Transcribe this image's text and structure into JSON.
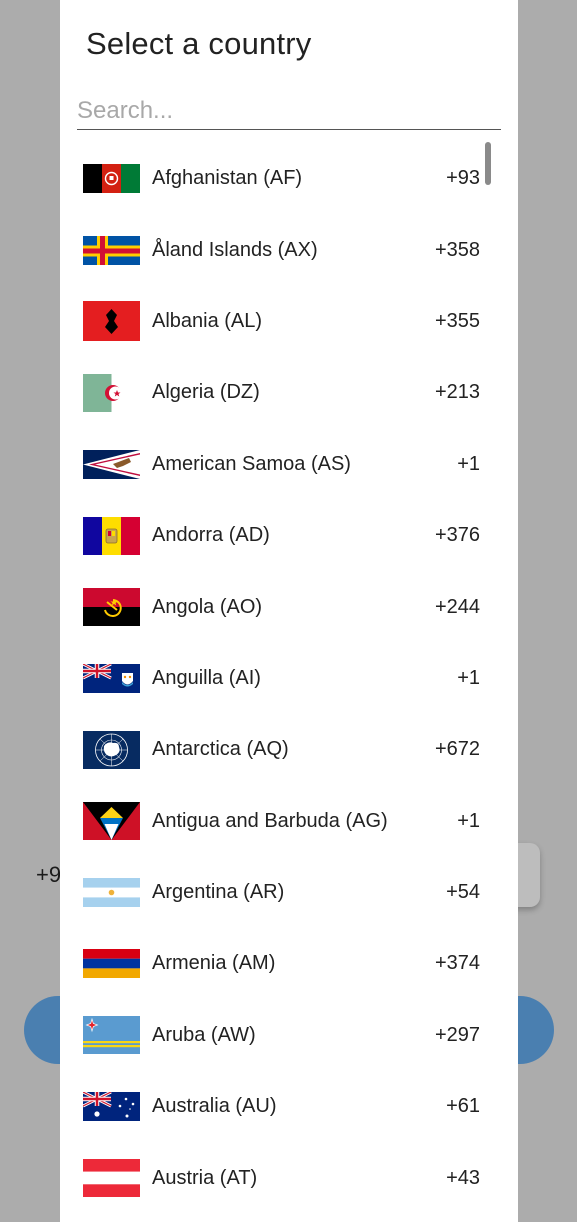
{
  "background": {
    "prefix_partial": "+9"
  },
  "dialog": {
    "title": "Select a country",
    "search_placeholder": "Search..."
  },
  "countries": [
    {
      "label": "Afghanistan (AF)",
      "dial": "+93",
      "flag_icon": "afghanistan-flag-icon"
    },
    {
      "label": "Åland Islands (AX)",
      "dial": "+358",
      "flag_icon": "aland-islands-flag-icon"
    },
    {
      "label": "Albania (AL)",
      "dial": "+355",
      "flag_icon": "albania-flag-icon"
    },
    {
      "label": "Algeria (DZ)",
      "dial": "+213",
      "flag_icon": "algeria-flag-icon"
    },
    {
      "label": "American Samoa (AS)",
      "dial": "+1",
      "flag_icon": "american-samoa-flag-icon"
    },
    {
      "label": "Andorra (AD)",
      "dial": "+376",
      "flag_icon": "andorra-flag-icon"
    },
    {
      "label": "Angola (AO)",
      "dial": "+244",
      "flag_icon": "angola-flag-icon"
    },
    {
      "label": "Anguilla (AI)",
      "dial": "+1",
      "flag_icon": "anguilla-flag-icon"
    },
    {
      "label": "Antarctica (AQ)",
      "dial": "+672",
      "flag_icon": "antarctica-flag-icon"
    },
    {
      "label": "Antigua and Barbuda (AG)",
      "dial": "+1",
      "flag_icon": "antigua-and-barbuda-flag-icon"
    },
    {
      "label": "Argentina (AR)",
      "dial": "+54",
      "flag_icon": "argentina-flag-icon"
    },
    {
      "label": "Armenia (AM)",
      "dial": "+374",
      "flag_icon": "armenia-flag-icon"
    },
    {
      "label": "Aruba (AW)",
      "dial": "+297",
      "flag_icon": "aruba-flag-icon"
    },
    {
      "label": "Australia (AU)",
      "dial": "+61",
      "flag_icon": "australia-flag-icon"
    },
    {
      "label": "Austria (AT)",
      "dial": "+43",
      "flag_icon": "austria-flag-icon"
    }
  ],
  "colors": {
    "overlay": "#acacac",
    "dialog_bg": "#ffffff",
    "primary_button": "#4a7fb0"
  }
}
